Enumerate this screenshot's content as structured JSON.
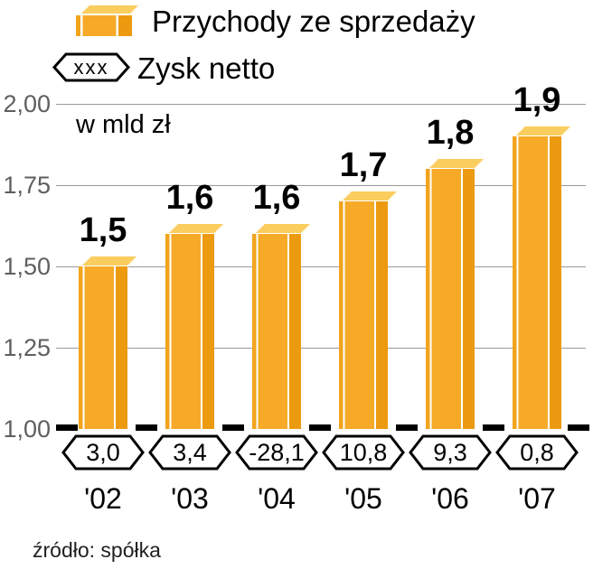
{
  "legend": {
    "profit_icon_text": "xxx"
  },
  "chart_data": {
    "type": "bar",
    "title": "",
    "xlabel": "",
    "ylabel": "w mld zł",
    "categories": [
      "'02",
      "'03",
      "'04",
      "'05",
      "'06",
      "'07"
    ],
    "series": [
      {
        "name": "Przychody ze sprzedaży",
        "values": [
          1.5,
          1.6,
          1.6,
          1.7,
          1.8,
          1.9
        ]
      },
      {
        "name": "Zysk netto",
        "values": [
          3.0,
          3.4,
          -28.1,
          10.8,
          9.3,
          0.8
        ]
      }
    ],
    "revenue_labels": [
      "1,5",
      "1,6",
      "1,6",
      "1,7",
      "1,8",
      "1,9"
    ],
    "profit_labels": [
      "3,0",
      "3,4",
      "-28,1",
      "10,8",
      "9,3",
      "0,8"
    ],
    "yticks": [
      "2,00",
      "1,75",
      "1,50",
      "1,25",
      "1,00"
    ],
    "ylim": [
      1.0,
      2.0
    ],
    "grid": true,
    "legend_position": "top-left",
    "colors": {
      "bar_front": "#F4A41E",
      "bar_top": "#FACD5F",
      "bar_edge": "#FFFFFF",
      "grid": "#9A9A9A",
      "axis_text": "#5F5F5F"
    }
  },
  "source": "źródło: spółka"
}
